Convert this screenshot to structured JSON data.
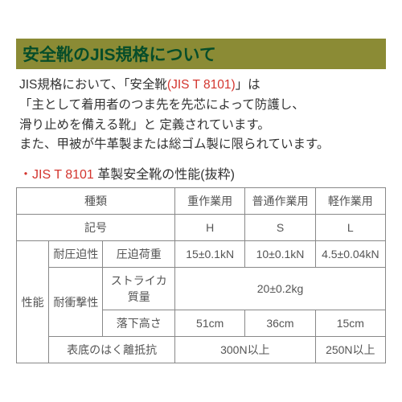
{
  "colors": {
    "titleBg": "#8b8b35",
    "titleText": "#064d2a",
    "redText": "#d3352e",
    "bodyText": "#333333",
    "tableBorder": "#888888",
    "tableText": "#555555",
    "white": "#ffffff"
  },
  "fontsize": {
    "title": 21,
    "body": 15.5,
    "heading2": 16,
    "cell": 14
  },
  "title": "安全靴のJIS規格について",
  "para": {
    "l1a": "JIS規格において、「安全靴",
    "l1b": "(JIS T 8101)",
    "l1c": "」は",
    "l2": "「主として着用者のつま先を先芯によって防護し、",
    "l3": "滑り止めを備える靴」と 定義されています。",
    "l4": "また、甲被が牛革製または総ゴム製に限られています。"
  },
  "heading2": {
    "a": "・JIS T 8101",
    "b": " 革製安全靴の性能(抜粋)"
  },
  "table": {
    "h_type": "種類",
    "h_heavy": "重作業用",
    "h_normal": "普通作業用",
    "h_light": "軽作業用",
    "r_symbol": "記号",
    "v_H": "H",
    "v_S": "S",
    "v_L": "L",
    "perf": "性能",
    "comp": "耐圧迫性",
    "comp_load": "圧迫荷重",
    "comp_H": "15±0.1kN",
    "comp_S": "10±0.1kN",
    "comp_L": "4.5±0.04kN",
    "imp": "耐衝撃性",
    "strika": "ストライカ質量",
    "strika_v": "20±0.2kg",
    "drop": "落下高さ",
    "drop_H": "51cm",
    "drop_S": "36cm",
    "drop_L": "15cm",
    "peel": "表底のはく離抵抗",
    "peel_a": "300N以上",
    "peel_b": "250N以上"
  }
}
